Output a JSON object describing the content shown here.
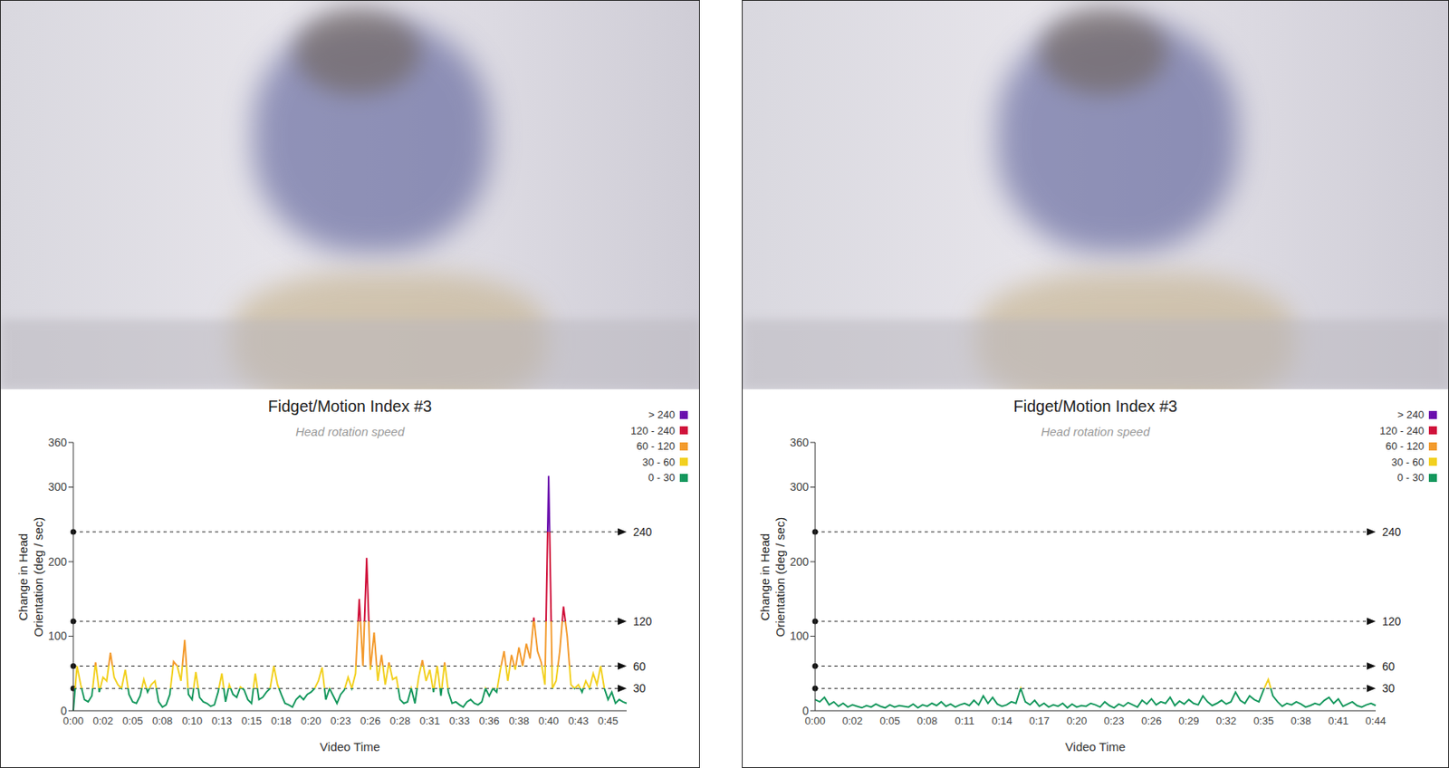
{
  "chart_data": [
    {
      "type": "line",
      "title": "Fidget/Motion Index #3",
      "subtitle": "Head rotation speed",
      "x_label": "Video Time",
      "y_label": [
        "Change in Head",
        "Orientation (deg / sec)"
      ],
      "categories": [
        "0:00",
        null,
        null,
        null,
        null,
        null,
        null,
        null,
        "0:02",
        null,
        null,
        null,
        null,
        null,
        null,
        null,
        "0:05",
        null,
        null,
        null,
        null,
        null,
        null,
        null,
        "0:08",
        null,
        null,
        null,
        null,
        null,
        null,
        null,
        "0:10",
        null,
        null,
        null,
        null,
        null,
        null,
        null,
        "0:13",
        null,
        null,
        null,
        null,
        null,
        null,
        null,
        "0:15",
        null,
        null,
        null,
        null,
        null,
        null,
        null,
        "0:18",
        null,
        null,
        null,
        null,
        null,
        null,
        null,
        "0:20",
        null,
        null,
        null,
        null,
        null,
        null,
        null,
        "0:23",
        null,
        null,
        null,
        null,
        null,
        null,
        null,
        "0:26",
        null,
        null,
        null,
        null,
        null,
        null,
        null,
        "0:28",
        null,
        null,
        null,
        null,
        null,
        null,
        null,
        "0:31",
        null,
        null,
        null,
        null,
        null,
        null,
        null,
        "0:33",
        null,
        null,
        null,
        null,
        null,
        null,
        null,
        "0:36",
        null,
        null,
        null,
        null,
        null,
        null,
        null,
        "0:38",
        null,
        null,
        null,
        null,
        null,
        null,
        null,
        "0:40",
        null,
        null,
        null,
        null,
        null,
        null,
        null,
        "0:43",
        null,
        null,
        null,
        null,
        null,
        null,
        null,
        "0:45",
        null,
        null,
        null,
        null,
        null
      ],
      "values": [
        0,
        60,
        35,
        15,
        12,
        20,
        65,
        25,
        45,
        40,
        78,
        45,
        35,
        30,
        55,
        22,
        12,
        10,
        20,
        42,
        25,
        35,
        40,
        12,
        5,
        8,
        22,
        66,
        60,
        40,
        95,
        22,
        15,
        52,
        18,
        12,
        10,
        6,
        8,
        25,
        50,
        12,
        35,
        22,
        18,
        32,
        28,
        15,
        10,
        50,
        15,
        18,
        25,
        30,
        60,
        35,
        22,
        10,
        8,
        5,
        15,
        20,
        15,
        22,
        25,
        30,
        40,
        58,
        15,
        30,
        20,
        10,
        22,
        28,
        45,
        30,
        50,
        150,
        60,
        205,
        55,
        105,
        40,
        75,
        35,
        65,
        42,
        45,
        15,
        10,
        12,
        30,
        10,
        45,
        68,
        40,
        55,
        25,
        60,
        20,
        65,
        25,
        10,
        12,
        8,
        5,
        12,
        15,
        10,
        8,
        12,
        30,
        20,
        30,
        25,
        55,
        80,
        40,
        75,
        55,
        85,
        60,
        90,
        70,
        125,
        80,
        65,
        35,
        315,
        30,
        40,
        80,
        140,
        100,
        35,
        30,
        35,
        25,
        40,
        30,
        50,
        35,
        60,
        30,
        15,
        25,
        10,
        15,
        12,
        10
      ],
      "ylim": [
        0,
        360
      ],
      "yticks": [
        0,
        100,
        200,
        300,
        360
      ],
      "grid": false,
      "thresholds": [
        30,
        60,
        120,
        240
      ],
      "bands": [
        {
          "label": "> 240",
          "min": 240,
          "color": "#6a0dad"
        },
        {
          "label": "120 - 240",
          "min": 120,
          "max": 240,
          "color": "#d0103a"
        },
        {
          "label": "60 - 120",
          "min": 60,
          "max": 120,
          "color": "#f39a2c"
        },
        {
          "label": "30 - 60",
          "min": 30,
          "max": 60,
          "color": "#f2d01e"
        },
        {
          "label": "0 - 30",
          "min": 0,
          "max": 30,
          "color": "#13975c"
        }
      ]
    },
    {
      "type": "line",
      "title": "Fidget/Motion Index #3",
      "subtitle": "Head rotation speed",
      "x_label": "Video Time",
      "y_label": [
        "Change in Head",
        "Orientation (deg / sec)"
      ],
      "categories": [
        "0:00",
        null,
        null,
        null,
        null,
        null,
        null,
        null,
        "0:02",
        null,
        null,
        null,
        null,
        null,
        null,
        null,
        "0:05",
        null,
        null,
        null,
        null,
        null,
        null,
        null,
        "0:08",
        null,
        null,
        null,
        null,
        null,
        null,
        null,
        "0:11",
        null,
        null,
        null,
        null,
        null,
        null,
        null,
        "0:14",
        null,
        null,
        null,
        null,
        null,
        null,
        null,
        "0:17",
        null,
        null,
        null,
        null,
        null,
        null,
        null,
        "0:20",
        null,
        null,
        null,
        null,
        null,
        null,
        null,
        "0:23",
        null,
        null,
        null,
        null,
        null,
        null,
        null,
        "0:26",
        null,
        null,
        null,
        null,
        null,
        null,
        null,
        "0:29",
        null,
        null,
        null,
        null,
        null,
        null,
        null,
        "0:32",
        null,
        null,
        null,
        null,
        null,
        null,
        null,
        "0:35",
        null,
        null,
        null,
        null,
        null,
        null,
        null,
        "0:38",
        null,
        null,
        null,
        null,
        null,
        null,
        null,
        "0:41",
        null,
        null,
        null,
        null,
        null,
        null,
        null,
        "0:44"
      ],
      "values": [
        15,
        12,
        18,
        8,
        12,
        6,
        10,
        5,
        8,
        6,
        4,
        7,
        5,
        9,
        6,
        4,
        8,
        5,
        7,
        6,
        5,
        9,
        4,
        8,
        6,
        10,
        7,
        12,
        6,
        9,
        5,
        8,
        10,
        7,
        14,
        8,
        20,
        10,
        18,
        9,
        6,
        8,
        12,
        10,
        30,
        12,
        8,
        14,
        6,
        10,
        5,
        8,
        6,
        10,
        4,
        9,
        5,
        7,
        6,
        10,
        8,
        5,
        12,
        7,
        4,
        9,
        6,
        11,
        8,
        5,
        14,
        9,
        16,
        8,
        12,
        10,
        18,
        7,
        13,
        9,
        15,
        10,
        8,
        20,
        12,
        7,
        10,
        14,
        9,
        12,
        25,
        14,
        10,
        20,
        15,
        12,
        28,
        42,
        20,
        12,
        6,
        10,
        8,
        12,
        9,
        5,
        7,
        10,
        8,
        14,
        18,
        10,
        16,
        6,
        9,
        12,
        7,
        5,
        8,
        10,
        7
      ],
      "ylim": [
        0,
        360
      ],
      "yticks": [
        0,
        100,
        200,
        300,
        360
      ],
      "grid": false,
      "thresholds": [
        30,
        60,
        120,
        240
      ],
      "bands": [
        {
          "label": "> 240",
          "min": 240,
          "color": "#6a0dad"
        },
        {
          "label": "120 - 240",
          "min": 120,
          "max": 240,
          "color": "#d0103a"
        },
        {
          "label": "60 - 120",
          "min": 60,
          "max": 120,
          "color": "#f39a2c"
        },
        {
          "label": "30 - 60",
          "min": 30,
          "max": 60,
          "color": "#f2d01e"
        },
        {
          "label": "0 - 30",
          "min": 0,
          "max": 30,
          "color": "#13975c"
        }
      ]
    }
  ]
}
